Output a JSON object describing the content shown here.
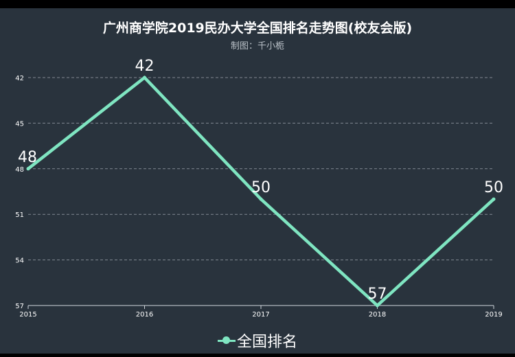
{
  "chart_data": {
    "type": "line",
    "title": "广州商学院2019民办大学全国排名走势图(校友会版)",
    "subtitle": "制图：千小栀",
    "x": [
      "2015",
      "2016",
      "2017",
      "2018",
      "2019"
    ],
    "y_ticks": [
      "42",
      "45",
      "48",
      "51",
      "54",
      "57"
    ],
    "ylim": [
      42,
      57
    ],
    "y_inverted": true,
    "grid": true,
    "legend_position": "bottom",
    "series": [
      {
        "name": "全国排名",
        "values": [
          48,
          42,
          50,
          57,
          50
        ],
        "labels": [
          "48",
          "42",
          "50",
          "57",
          "50"
        ]
      }
    ],
    "colors": {
      "line": "#7fe5c1",
      "background": "#29333d",
      "text": "#ffffff",
      "grid": "#a0a8b0"
    }
  }
}
